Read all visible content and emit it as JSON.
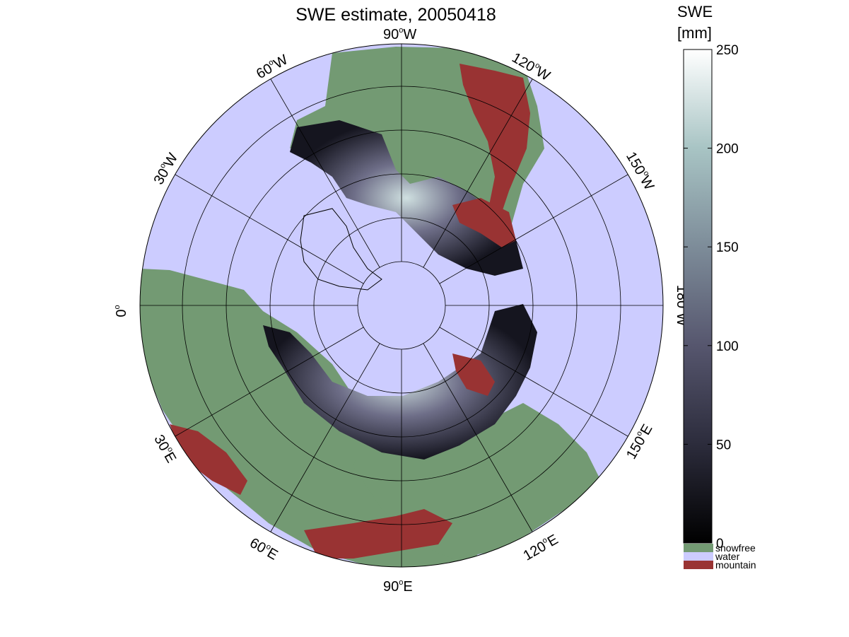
{
  "title": "SWE estimate, 20050418",
  "colors": {
    "water": "#ccccff",
    "snowfree": "#739a73",
    "mountain": "#993333",
    "grid": "#000000"
  },
  "longitude_labels": {
    "deg_symbol": "o",
    "l_90W": {
      "num": "90",
      "hemi": "W"
    },
    "l_120W": {
      "num": "120",
      "hemi": "W"
    },
    "l_150W": {
      "num": "150",
      "hemi": "W"
    },
    "l_180W": {
      "num": "180",
      "hemi": "W"
    },
    "l_60W": {
      "num": "60",
      "hemi": "W"
    },
    "l_30W": {
      "num": "30",
      "hemi": "W"
    },
    "l_0": {
      "num": "0",
      "hemi": ""
    },
    "l_30E": {
      "num": "30",
      "hemi": "E"
    },
    "l_60E": {
      "num": "60",
      "hemi": "E"
    },
    "l_90E": {
      "num": "90",
      "hemi": "E"
    },
    "l_120E": {
      "num": "120",
      "hemi": "E"
    },
    "l_150E": {
      "num": "150",
      "hemi": "E"
    }
  },
  "colorbar": {
    "title_line1": "SWE",
    "title_line2": "[mm]",
    "min": 0,
    "max": 250,
    "ticks": [
      {
        "value": 0,
        "label": "0"
      },
      {
        "value": 50,
        "label": "50"
      },
      {
        "value": 100,
        "label": "100"
      },
      {
        "value": 150,
        "label": "150"
      },
      {
        "value": 200,
        "label": "200"
      },
      {
        "value": 250,
        "label": "250"
      }
    ],
    "colors": [
      "#000000",
      "#2c2c3c",
      "#56566e",
      "#7d8c99",
      "#a8c4c4",
      "#ffffff"
    ]
  },
  "legend": [
    {
      "label": "snowfree",
      "color": "#739a73"
    },
    {
      "label": "water",
      "color": "#ccccff"
    },
    {
      "label": "mountain",
      "color": "#993333"
    }
  ]
}
